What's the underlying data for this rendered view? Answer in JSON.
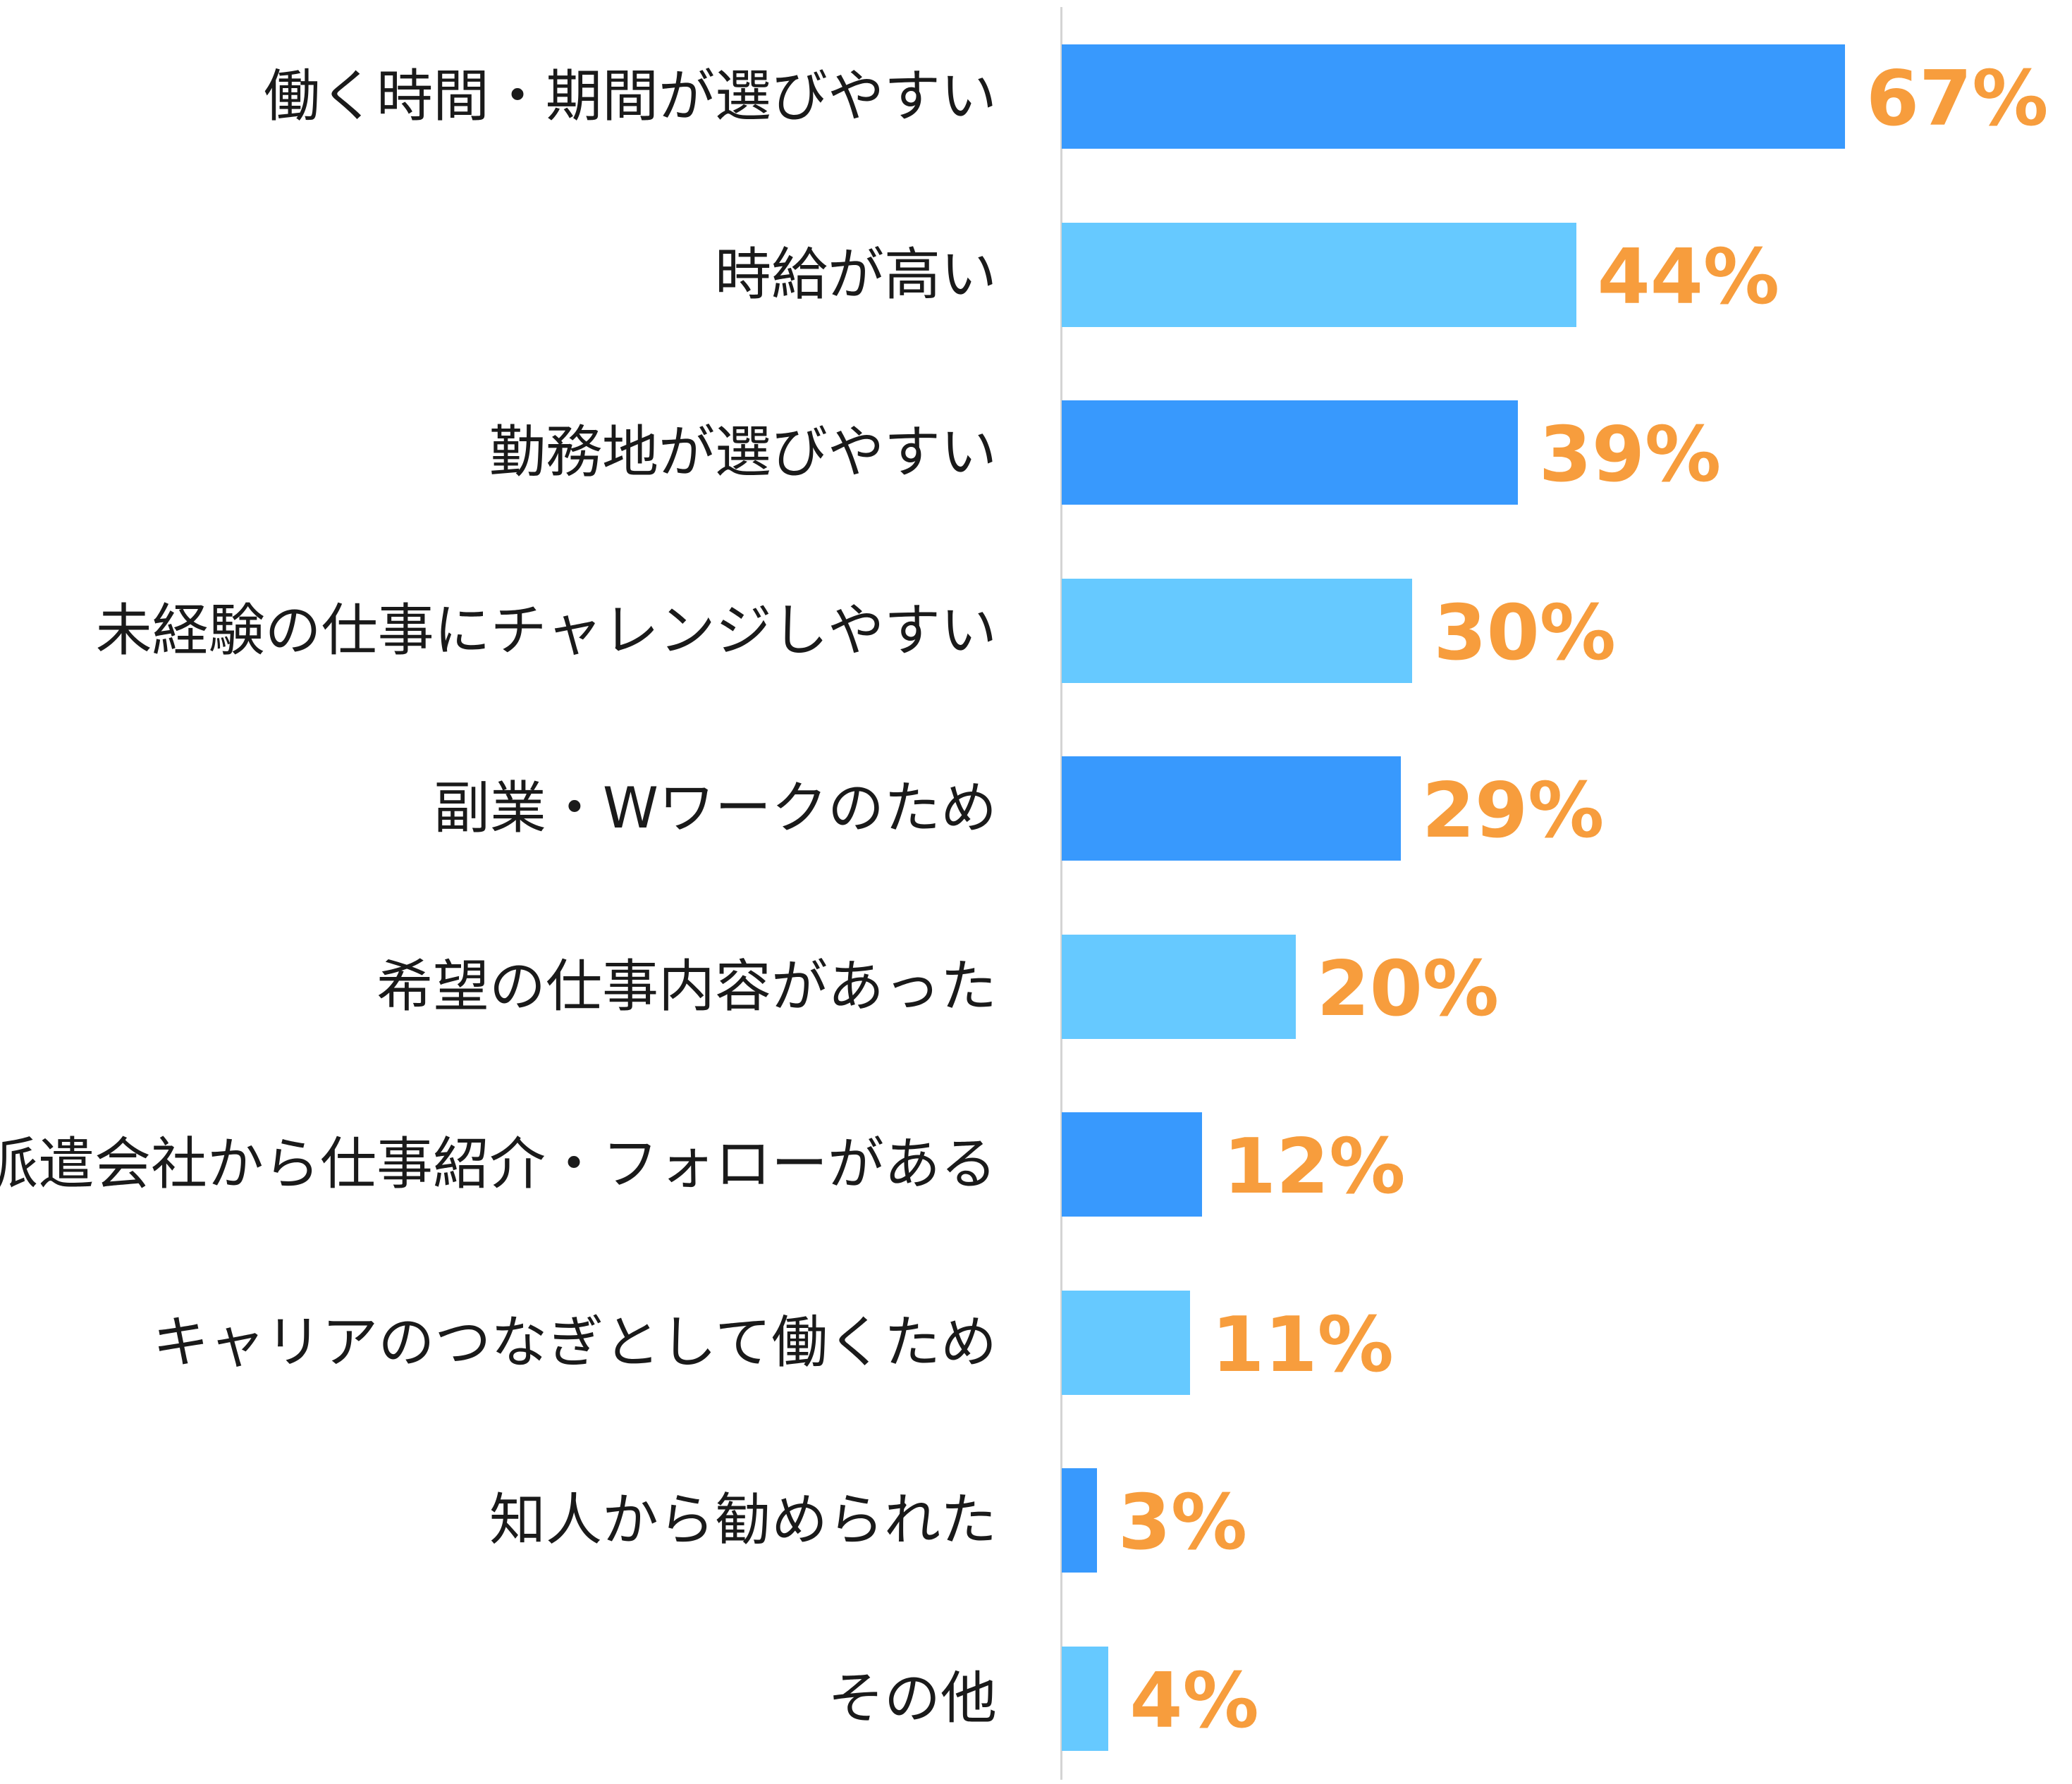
{
  "chart_data": {
    "type": "bar",
    "orientation": "horizontal",
    "categories": [
      "働く時間・期間が選びやすい",
      "時給が高い",
      "勤務地が選びやすい",
      "未経験の仕事にチャレンジしやすい",
      "副業・Wワークのため",
      "希望の仕事内容があった",
      "派遣会社から仕事紹介・フォローがある",
      "キャリアのつなぎとして働くため",
      "知人から勧められた",
      "その他"
    ],
    "values": [
      67,
      44,
      39,
      30,
      29,
      20,
      12,
      11,
      3,
      4
    ],
    "value_labels": [
      "67%",
      "44%",
      "39%",
      "30%",
      "29%",
      "20%",
      "12%",
      "11%",
      "3%",
      "4%"
    ],
    "unit": "%",
    "xlim": [
      0,
      67
    ],
    "grid": false,
    "legend": "none",
    "colors": {
      "bar_alternate": [
        "#3899fd",
        "#66c9ff"
      ],
      "value_label": "#f79d3d",
      "category_label": "#1a1a1a",
      "axis_line": "#d4d4d4"
    }
  }
}
